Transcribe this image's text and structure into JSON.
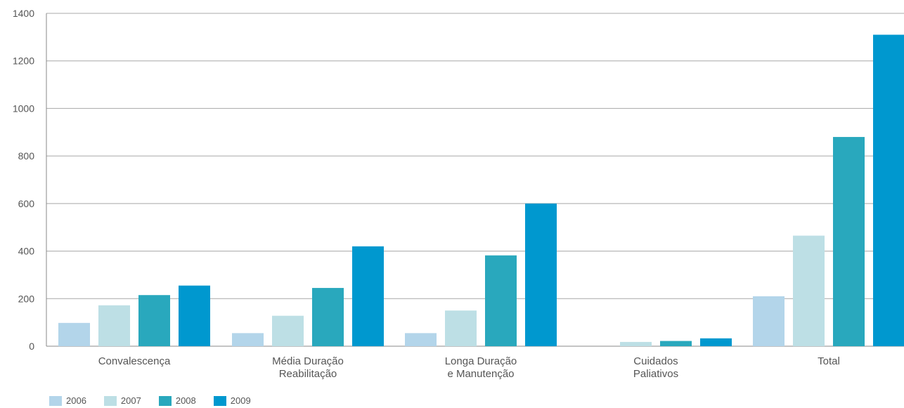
{
  "chart_data": {
    "type": "bar",
    "categories": [
      [
        "Convalescença"
      ],
      [
        "Média Duração",
        "Reabilitação"
      ],
      [
        "Longa Duração",
        "e Manutenção"
      ],
      [
        "Cuidados",
        "Paliativos"
      ],
      [
        "Total"
      ]
    ],
    "series": [
      {
        "name": "2006",
        "color": "#b3d5ea",
        "values": [
          98,
          55,
          55,
          0,
          210
        ]
      },
      {
        "name": "2007",
        "color": "#bddfe5",
        "values": [
          172,
          128,
          150,
          18,
          465
        ]
      },
      {
        "name": "2008",
        "color": "#29a8bd",
        "values": [
          215,
          245,
          382,
          22,
          880
        ]
      },
      {
        "name": "2009",
        "color": "#0098cf",
        "values": [
          255,
          420,
          600,
          33,
          1310
        ]
      }
    ],
    "yticks": [
      "0",
      "200",
      "400",
      "600",
      "800",
      "1000",
      "1200",
      "1400"
    ],
    "ylim": [
      0,
      1400
    ],
    "grid": true,
    "legend_position": "bottom-left"
  }
}
